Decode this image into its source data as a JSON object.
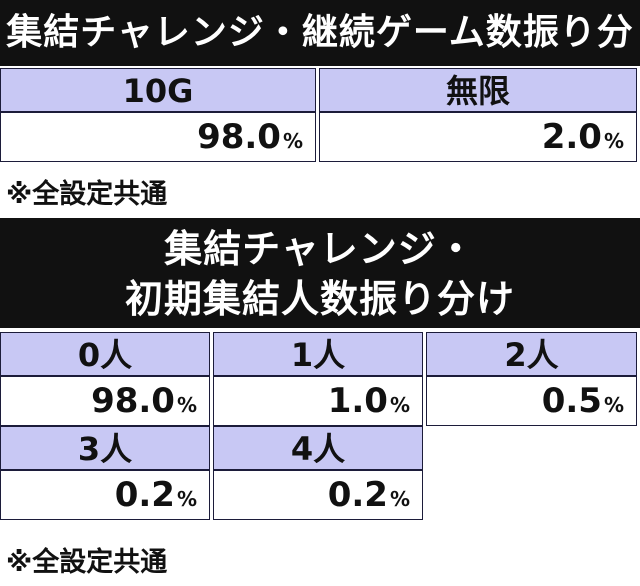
{
  "table1": {
    "title": "集結チャレンジ・継続ゲーム数振り分け",
    "columns": [
      "10G",
      "無限"
    ],
    "values": [
      "98.0",
      "2.0"
    ],
    "unit": "%",
    "note": "※全設定共通"
  },
  "table2": {
    "title_line1": "集結チャレンジ・",
    "title_line2": "初期集結人数振り分け",
    "row1": {
      "labels": [
        "0人",
        "1人",
        "2人"
      ],
      "values": [
        "98.0",
        "1.0",
        "0.5"
      ]
    },
    "row2": {
      "labels": [
        "3人",
        "4人"
      ],
      "values": [
        "0.2",
        "0.2"
      ]
    },
    "unit": "%",
    "note": "※全設定共通"
  },
  "colors": {
    "header_bg": "#111111",
    "label_bg": "#c8c8f4",
    "text": "#111111"
  }
}
